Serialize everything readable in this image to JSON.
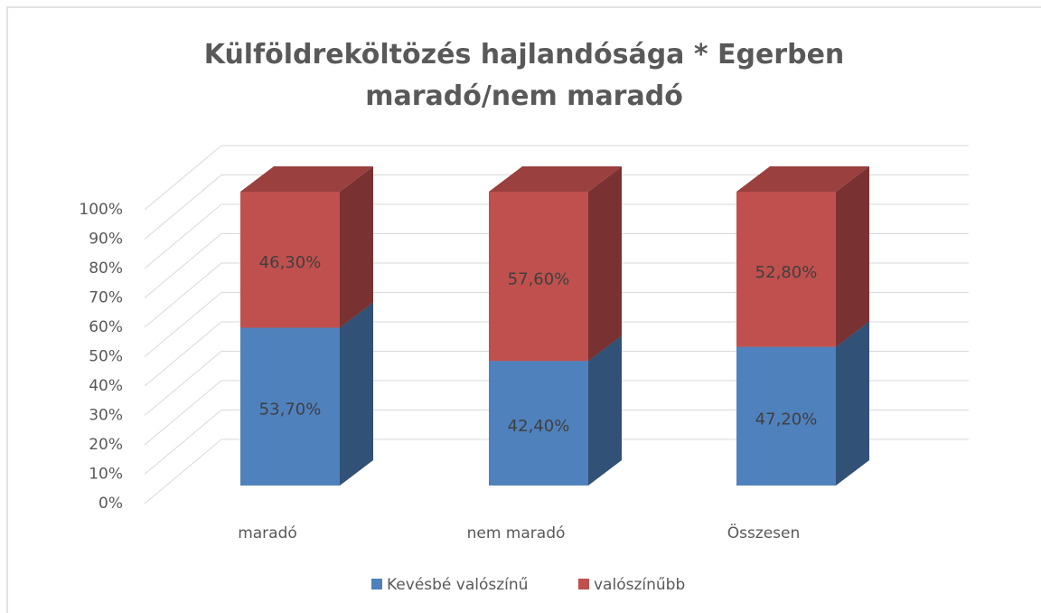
{
  "chart_data": {
    "type": "bar3d_stacked",
    "title": "Külföldreköltözés hajlandósága * Egerben maradó/nem maradó",
    "categories": [
      "maradó",
      "nem maradó",
      "Összesen"
    ],
    "series": [
      {
        "name": "Kevésbé valószínű",
        "color": "#4f81bd",
        "values": [
          53.7,
          42.4,
          47.2
        ],
        "value_labels": [
          "53,70%",
          "42,40%",
          "47,20%"
        ]
      },
      {
        "name": "valószínűbb",
        "color": "#c0504d",
        "values": [
          46.3,
          57.6,
          52.8
        ],
        "value_labels": [
          "46,30%",
          "57,60%",
          "52,80%"
        ]
      }
    ],
    "ylim": [
      0,
      100
    ],
    "yticks": [
      {
        "value": 0,
        "label": "0%"
      },
      {
        "value": 10,
        "label": "10%"
      },
      {
        "value": 20,
        "label": "20%"
      },
      {
        "value": 30,
        "label": "30%"
      },
      {
        "value": 40,
        "label": "40%"
      },
      {
        "value": 50,
        "label": "50%"
      },
      {
        "value": 60,
        "label": "60%"
      },
      {
        "value": 70,
        "label": "70%"
      },
      {
        "value": 80,
        "label": "80%"
      },
      {
        "value": 90,
        "label": "90%"
      },
      {
        "value": 100,
        "label": "100%"
      }
    ],
    "grid": true,
    "legend": "bottom"
  }
}
